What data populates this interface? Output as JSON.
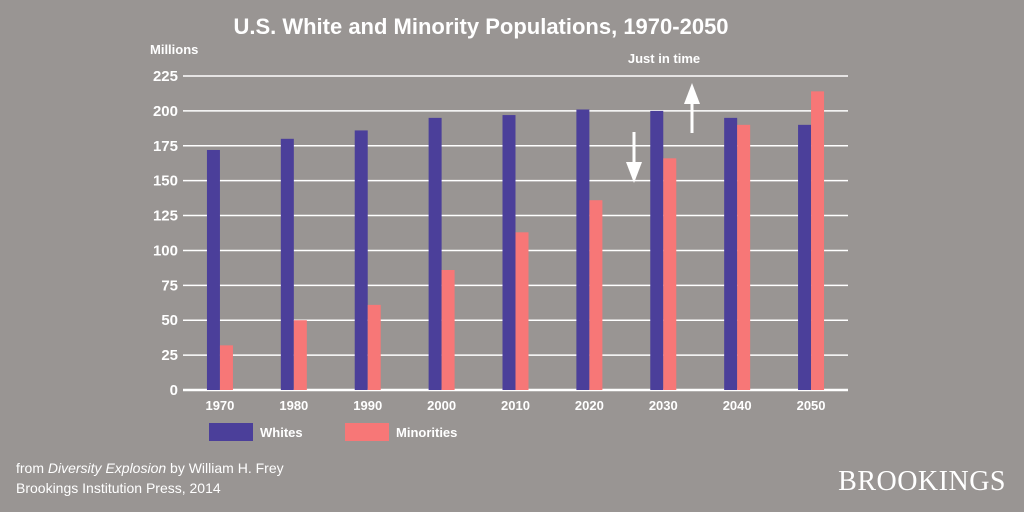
{
  "chart_data": {
    "type": "bar",
    "title": "U.S. White and Minority Populations, 1970-2050",
    "ylabel": "Millions",
    "xlabel": "",
    "ylim": [
      0,
      225
    ],
    "yticks": [
      0,
      25,
      50,
      75,
      100,
      125,
      150,
      175,
      200,
      225
    ],
    "grid": true,
    "categories": [
      "1970",
      "1980",
      "1990",
      "2000",
      "2010",
      "2020",
      "2030",
      "2040",
      "2050"
    ],
    "series": [
      {
        "name": "Whites",
        "color": "#4b3f9a",
        "values": [
          172,
          180,
          186,
          195,
          197,
          201,
          200,
          195,
          190
        ]
      },
      {
        "name": "Minorities",
        "color": "#f77777",
        "values": [
          32,
          50,
          61,
          86,
          113,
          136,
          166,
          190,
          214
        ]
      }
    ],
    "annotation": "Just in time",
    "legend_position": "bottom-left"
  },
  "credit": {
    "prefix": "from ",
    "book": "Diversity Explosion",
    "suffix": " by William H. Frey",
    "publisher": "Brookings Institution Press, 2014"
  },
  "brand": "BROOKINGS"
}
